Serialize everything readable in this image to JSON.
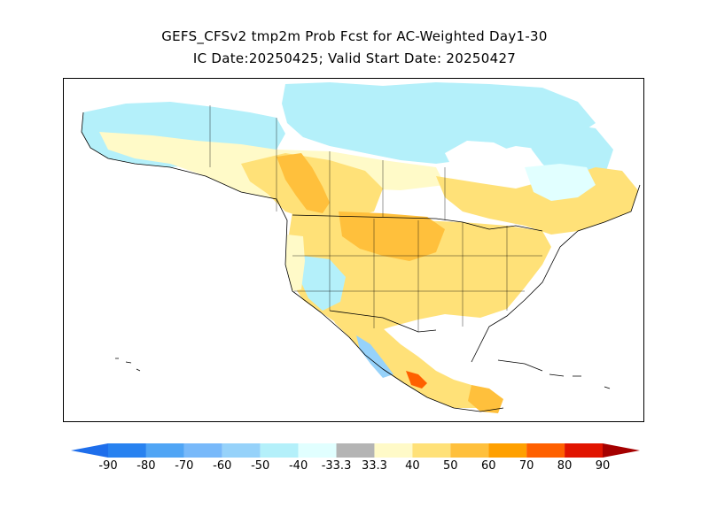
{
  "title": {
    "line1": "GEFS_CFSv2 tmp2m Prob Fcst for AC-Weighted Day1-30",
    "line2": "IC Date:20250425; Valid Start Date: 20250427"
  },
  "map": {
    "region": "North America",
    "variable": "tmp2m probability",
    "dominant_category": "above-normal (33.3 to 60)",
    "notes": [
      "warm probabilities across contiguous US and Mexico",
      "below-normal probabilities in northern Canada, Alaska and parts of the western US",
      "strongest warm signal over northern Plains and southern Mexico"
    ]
  },
  "colorbar": {
    "labels": [
      "-90",
      "-80",
      "-70",
      "-60",
      "-50",
      "-40",
      "-33.3",
      "33.3",
      "40",
      "50",
      "60",
      "70",
      "80",
      "90"
    ],
    "colors": [
      "#1e6eeb",
      "#2882f0",
      "#50a5f5",
      "#78b9fa",
      "#96d2fa",
      "#b4f0fa",
      "#e1ffff",
      "#b4b4b4",
      "#fffac8",
      "#ffe178",
      "#ffc03c",
      "#ffa000",
      "#ff6000",
      "#e11400",
      "#a50000"
    ]
  }
}
